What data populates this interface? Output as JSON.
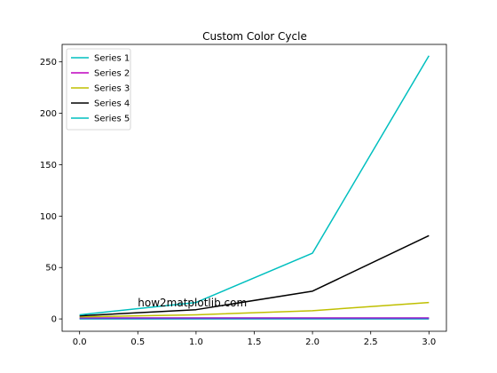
{
  "chart_data": {
    "type": "line",
    "title": "Custom Color Cycle",
    "xlabel": "",
    "ylabel": "",
    "x": [
      0,
      1,
      2,
      3
    ],
    "xlim": [
      -0.15,
      3.15
    ],
    "ylim": [
      -12,
      267
    ],
    "xticks": [
      0.0,
      0.5,
      1.0,
      1.5,
      2.0,
      2.5,
      3.0
    ],
    "xtick_labels": [
      "0.0",
      "0.5",
      "1.0",
      "1.5",
      "2.0",
      "2.5",
      "3.0"
    ],
    "yticks": [
      0,
      50,
      100,
      150,
      200,
      250
    ],
    "ytick_labels": [
      "0",
      "50",
      "100",
      "150",
      "200",
      "250"
    ],
    "grid": false,
    "legend_position": "top-left",
    "series": [
      {
        "name": "Series 1",
        "color": "#00bfbf",
        "values": [
          0,
          0,
          0,
          0
        ]
      },
      {
        "name": "Series 2",
        "color": "#bf00bf",
        "values": [
          1,
          1,
          1,
          1
        ]
      },
      {
        "name": "Series 3",
        "color": "#bfbf00",
        "values": [
          2,
          4,
          8,
          16
        ]
      },
      {
        "name": "Series 4",
        "color": "#000000",
        "values": [
          3,
          9,
          27,
          81
        ]
      },
      {
        "name": "Series 5",
        "color": "#00bfbf",
        "values": [
          4,
          16,
          64,
          256
        ]
      }
    ],
    "extra_lines": [
      {
        "color": "#6a3fd0",
        "values": [
          0.5,
          0.5,
          0.5,
          0.5
        ]
      }
    ],
    "annotation": {
      "text": "how2matplotlib.com",
      "x": 0.5,
      "y": 12
    }
  }
}
